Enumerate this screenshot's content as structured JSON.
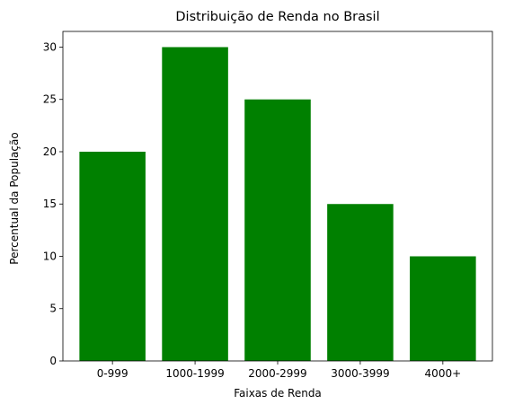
{
  "chart_data": {
    "type": "bar",
    "title": "Distribuição de Renda no Brasil",
    "xlabel": "Faixas de Renda",
    "ylabel": "Percentual da População",
    "categories": [
      "0-999",
      "1000-1999",
      "2000-2999",
      "3000-3999",
      "4000+"
    ],
    "values": [
      20,
      30,
      25,
      15,
      10
    ],
    "ylim": [
      0,
      31.5
    ],
    "yticks": [
      0,
      5,
      10,
      15,
      20,
      25,
      30
    ],
    "bar_color": "#008000",
    "grid": false,
    "legend": "none"
  }
}
